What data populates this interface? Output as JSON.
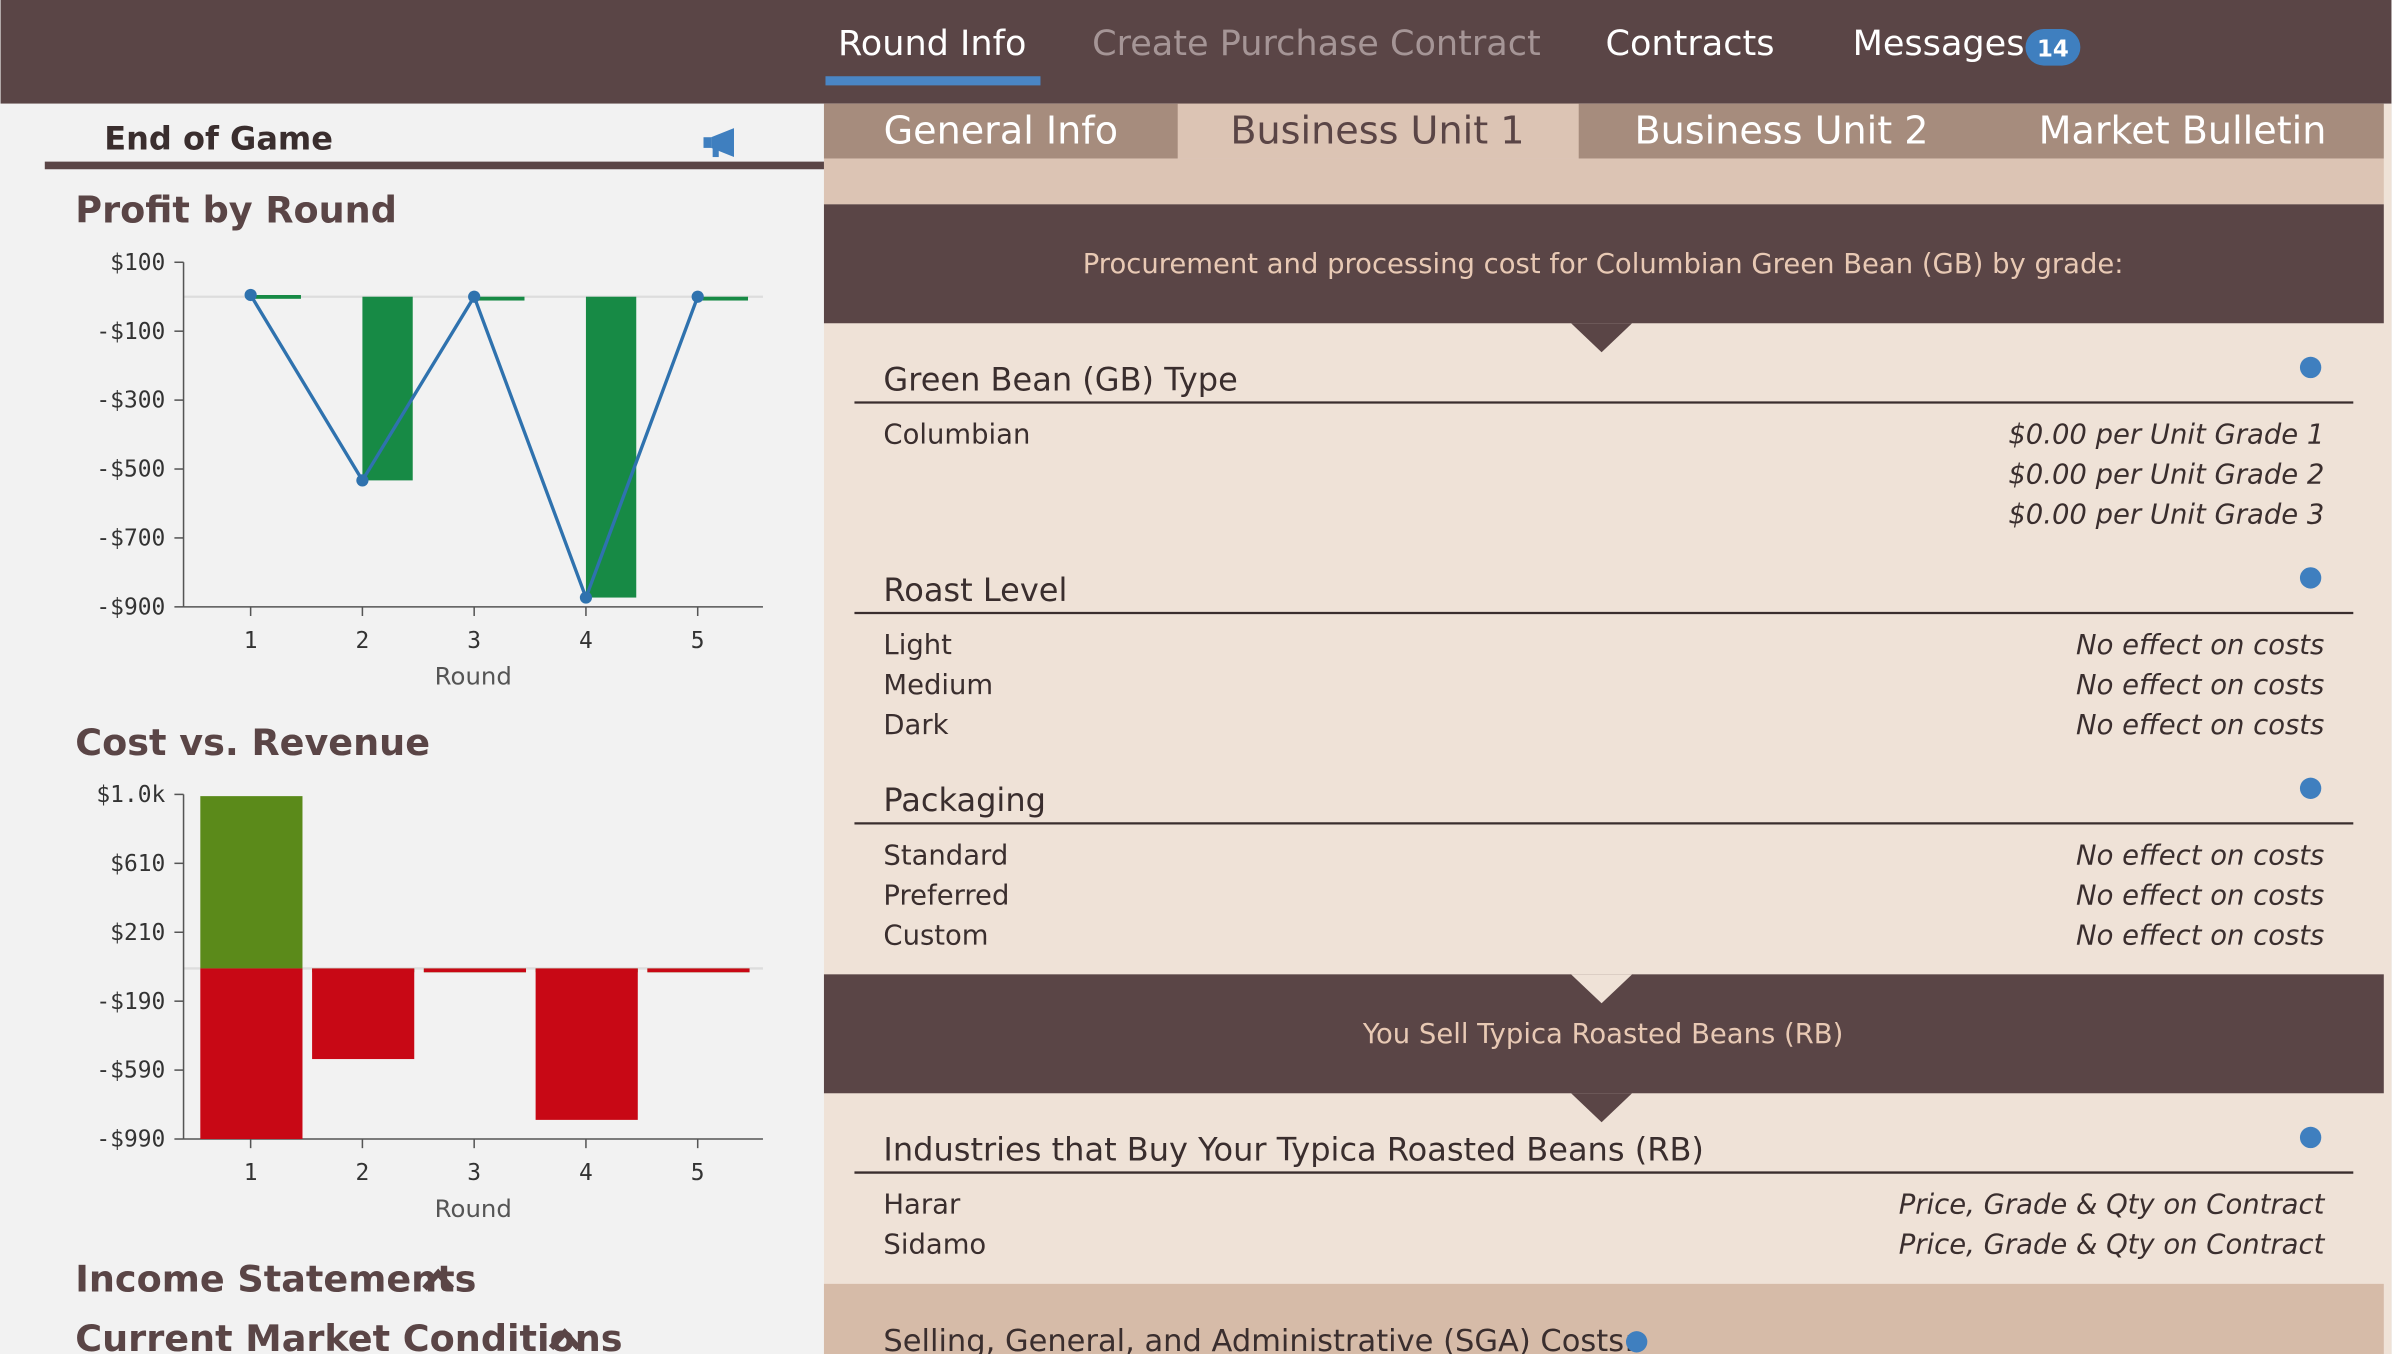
{
  "nav": {
    "tabs": [
      "Round Info",
      "Create Purchase Contract",
      "Contracts",
      "Messages"
    ],
    "messages_badge": 14
  },
  "sidebar": {
    "title": "End of Game",
    "sections": [
      "Income Statements",
      "Current Market Conditions"
    ]
  },
  "profit_chart": {
    "type": "bar",
    "title": "Profit by Round",
    "x_label": "Round",
    "categories": [
      "1",
      "2",
      "3",
      "4",
      "5"
    ],
    "ylim": [
      -900,
      100
    ],
    "yticks": [
      {
        "value": 100,
        "label": "$100"
      },
      {
        "value": -100,
        "label": "-$100"
      },
      {
        "value": -300,
        "label": "-$300"
      },
      {
        "value": -500,
        "label": "-$500"
      },
      {
        "value": -700,
        "label": "-$700"
      },
      {
        "value": -900,
        "label": "-$900"
      }
    ],
    "series": [
      {
        "type": "bar",
        "color": "#178a45",
        "values": [
          5,
          -533,
          0,
          -873,
          0
        ]
      },
      {
        "type": "line",
        "color": "#2f72ae",
        "values": [
          5,
          -533,
          0,
          -873,
          0
        ]
      }
    ]
  },
  "cost_chart": {
    "type": "bar",
    "title": "Cost vs. Revenue",
    "x_label": "Round",
    "categories": [
      "1",
      "2",
      "3",
      "4",
      "5"
    ],
    "ylim": [
      -990,
      1010
    ],
    "yticks": [
      {
        "value": 1010,
        "label": "$1.0k"
      },
      {
        "value": 610,
        "label": "$610"
      },
      {
        "value": 210,
        "label": "$210"
      },
      {
        "value": -190,
        "label": "-$190"
      },
      {
        "value": -590,
        "label": "-$590"
      },
      {
        "value": -990,
        "label": "-$990"
      }
    ],
    "series": [
      {
        "type": "bar",
        "color": "#5b8a1a",
        "values": [
          1000,
          0,
          0,
          0,
          0
        ]
      },
      {
        "type": "bar",
        "color": "#c80815",
        "values": [
          -990,
          -526,
          0,
          -879,
          0
        ]
      }
    ]
  },
  "subtabs": [
    "General Info",
    "Business Unit 1",
    "Business Unit 2",
    "Market Bulletin"
  ],
  "banner1": "Procurement and processing cost for Columbian Green Bean (GB) by grade:",
  "groups": [
    {
      "title": "Green Bean (GB) Type",
      "items": [
        {
          "label": "Columbian",
          "notes": [
            "$0.00 per Unit Grade 1",
            "$0.00 per Unit Grade 2",
            "$0.00 per Unit Grade 3"
          ]
        }
      ]
    },
    {
      "title": "Roast Level",
      "items": [
        {
          "label": "Light",
          "notes": [
            "No effect on costs"
          ]
        },
        {
          "label": "Medium",
          "notes": [
            "No effect on costs"
          ]
        },
        {
          "label": "Dark",
          "notes": [
            "No effect on costs"
          ]
        }
      ]
    },
    {
      "title": "Packaging",
      "items": [
        {
          "label": "Standard",
          "notes": [
            "No effect on costs"
          ]
        },
        {
          "label": "Preferred",
          "notes": [
            "No effect on costs"
          ]
        },
        {
          "label": "Custom",
          "notes": [
            "No effect on costs"
          ]
        }
      ]
    },
    {
      "title": "Industries that Buy Your Typica Roasted Beans (RB)",
      "items": [
        {
          "label": "Harar",
          "notes": [
            "Price, Grade & Qty on Contract"
          ]
        },
        {
          "label": "Sidamo",
          "notes": [
            "Price, Grade & Qty on Contract"
          ]
        }
      ]
    }
  ],
  "banner2": "You Sell Typica Roasted Beans (RB)",
  "footer_section": "Selling, General, and Administrative (SGA) Costs:"
}
